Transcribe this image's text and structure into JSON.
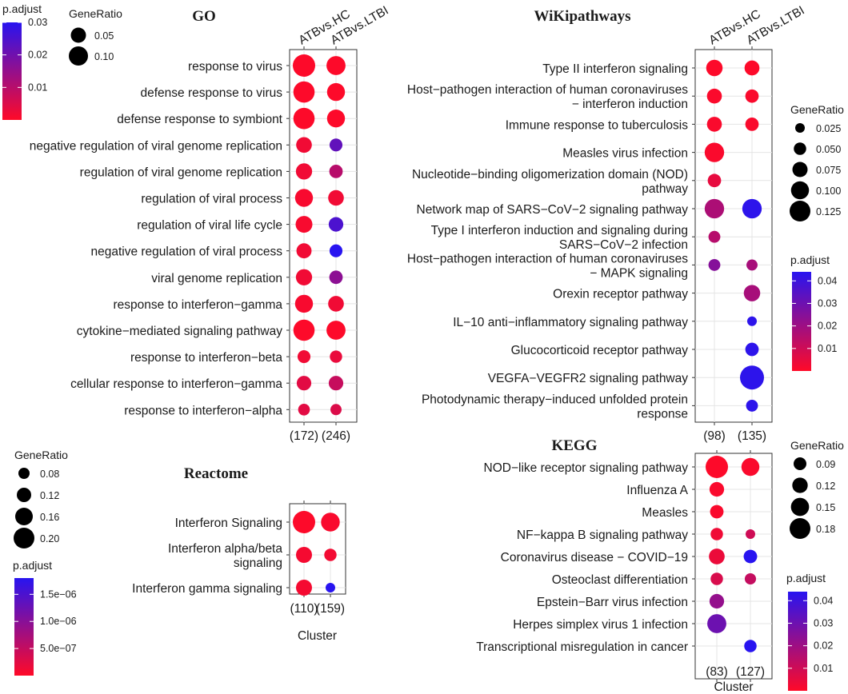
{
  "chart_data": [
    {
      "id": "go",
      "type": "scatter",
      "title": "GO",
      "xlabel": "",
      "columns": [
        "ATBvs.HC",
        "ATBvs.LTBI"
      ],
      "counts": [
        "(172)",
        "(246)"
      ],
      "terms": [
        "response to virus",
        "defense response to virus",
        "defense response to symbiont",
        "negative regulation of viral genome replication",
        "regulation of viral genome replication",
        "regulation of viral process",
        "regulation of viral life cycle",
        "negative regulation of viral process",
        "viral genome replication",
        "response to interferon−gamma",
        "cytokine−mediated signaling pathway",
        "response to interferon−beta",
        "cellular response to interferon−gamma",
        "response to interferon−alpha"
      ],
      "points": [
        {
          "term": 0,
          "col": 0,
          "ratio": 0.13,
          "padj": 0.0003
        },
        {
          "term": 0,
          "col": 1,
          "ratio": 0.1,
          "padj": 0.0003
        },
        {
          "term": 1,
          "col": 0,
          "ratio": 0.12,
          "padj": 0.0003
        },
        {
          "term": 1,
          "col": 1,
          "ratio": 0.09,
          "padj": 0.0003
        },
        {
          "term": 2,
          "col": 0,
          "ratio": 0.12,
          "padj": 0.0003
        },
        {
          "term": 2,
          "col": 1,
          "ratio": 0.09,
          "padj": 0.0003
        },
        {
          "term": 3,
          "col": 0,
          "ratio": 0.07,
          "padj": 0.002
        },
        {
          "term": 3,
          "col": 1,
          "ratio": 0.045,
          "padj": 0.022
        },
        {
          "term": 4,
          "col": 0,
          "ratio": 0.075,
          "padj": 0.002
        },
        {
          "term": 4,
          "col": 1,
          "ratio": 0.05,
          "padj": 0.01
        },
        {
          "term": 5,
          "col": 0,
          "ratio": 0.09,
          "padj": 0.001
        },
        {
          "term": 5,
          "col": 1,
          "ratio": 0.07,
          "padj": 0.002
        },
        {
          "term": 6,
          "col": 0,
          "ratio": 0.08,
          "padj": 0.001
        },
        {
          "term": 6,
          "col": 1,
          "ratio": 0.06,
          "padj": 0.025
        },
        {
          "term": 7,
          "col": 0,
          "ratio": 0.065,
          "padj": 0.002
        },
        {
          "term": 7,
          "col": 1,
          "ratio": 0.045,
          "padj": 0.03
        },
        {
          "term": 8,
          "col": 0,
          "ratio": 0.075,
          "padj": 0.002
        },
        {
          "term": 8,
          "col": 1,
          "ratio": 0.05,
          "padj": 0.016
        },
        {
          "term": 9,
          "col": 0,
          "ratio": 0.09,
          "padj": 0.001
        },
        {
          "term": 9,
          "col": 1,
          "ratio": 0.07,
          "padj": 0.002
        },
        {
          "term": 10,
          "col": 0,
          "ratio": 0.12,
          "padj": 0.0003
        },
        {
          "term": 10,
          "col": 1,
          "ratio": 0.1,
          "padj": 0.0003
        },
        {
          "term": 11,
          "col": 0,
          "ratio": 0.045,
          "padj": 0.002
        },
        {
          "term": 11,
          "col": 1,
          "ratio": 0.04,
          "padj": 0.003
        },
        {
          "term": 12,
          "col": 0,
          "ratio": 0.06,
          "padj": 0.004
        },
        {
          "term": 12,
          "col": 1,
          "ratio": 0.06,
          "padj": 0.008
        },
        {
          "term": 13,
          "col": 0,
          "ratio": 0.035,
          "padj": 0.004
        },
        {
          "term": 13,
          "col": 1,
          "ratio": 0.03,
          "padj": 0.005
        }
      ],
      "size_legend": {
        "title": "GeneRatio",
        "values": [
          0.05,
          0.1
        ],
        "labels": [
          "0.05",
          "0.10"
        ]
      },
      "color_legend": {
        "title": "p.adjust",
        "min": 0,
        "max": 0.03,
        "ticks": [
          0.01,
          0.02,
          0.03
        ],
        "labels": [
          "0.01",
          "0.02",
          "0.03"
        ]
      }
    },
    {
      "id": "reactome",
      "type": "scatter",
      "title": "Reactome",
      "xlabel": "Cluster",
      "columns": [],
      "counts": [
        "(110)",
        "(159)"
      ],
      "terms": [
        "Interferon Signaling",
        "Interferon alpha/beta|signaling",
        "Interferon gamma signaling"
      ],
      "points": [
        {
          "term": 0,
          "col": 0,
          "ratio": 0.2,
          "padj": 2e-08
        },
        {
          "term": 0,
          "col": 1,
          "ratio": 0.16,
          "padj": 5e-08
        },
        {
          "term": 1,
          "col": 0,
          "ratio": 0.13,
          "padj": 8e-08
        },
        {
          "term": 1,
          "col": 1,
          "ratio": 0.09,
          "padj": 1e-07
        },
        {
          "term": 2,
          "col": 0,
          "ratio": 0.13,
          "padj": 8e-08
        },
        {
          "term": 2,
          "col": 1,
          "ratio": 0.06,
          "padj": 1.8e-06
        }
      ],
      "size_legend": {
        "title": "GeneRatio",
        "values": [
          0.08,
          0.12,
          0.16,
          0.2
        ],
        "labels": [
          "0.08",
          "0.12",
          "0.16",
          "0.20"
        ]
      },
      "color_legend": {
        "title": "p.adjust",
        "min": 0,
        "max": 1.8e-06,
        "ticks": [
          5e-07,
          1e-06,
          1.5e-06
        ],
        "labels": [
          "5.0e−07",
          "1.0e−06",
          "1.5e−06"
        ]
      }
    },
    {
      "id": "wiki",
      "type": "scatter",
      "title": "WiKipathways",
      "xlabel": "",
      "columns": [
        "ATBvs.HC",
        "ATBvs.LTBI"
      ],
      "counts": [
        "(98)",
        "(135)"
      ],
      "terms": [
        "Type II interferon signaling",
        "Host−pathogen interaction of human coronaviruses|− interferon induction",
        "Immune response to tuberculosis",
        "Measles virus infection",
        "Nucleotide−binding oligomerization domain (NOD)|pathway",
        "Network map of SARS−CoV−2 signaling pathway",
        "Type I interferon induction and signaling during|SARS−CoV−2 infection",
        "Host−pathogen interaction of human coronaviruses|− MAPK signaling",
        "Orexin receptor pathway",
        "IL−10 anti−inflammatory signaling pathway",
        "Glucocorticoid receptor pathway",
        "VEGFA−VEGFR2 signaling pathway",
        "Photodynamic therapy−induced unfolded protein|response"
      ],
      "points": [
        {
          "term": 0,
          "col": 0,
          "ratio": 0.06,
          "padj": 0.0005
        },
        {
          "term": 0,
          "col": 1,
          "ratio": 0.05,
          "padj": 0.0005
        },
        {
          "term": 1,
          "col": 0,
          "ratio": 0.05,
          "padj": 0.0008
        },
        {
          "term": 1,
          "col": 1,
          "ratio": 0.04,
          "padj": 0.001
        },
        {
          "term": 2,
          "col": 0,
          "ratio": 0.05,
          "padj": 0.001
        },
        {
          "term": 2,
          "col": 1,
          "ratio": 0.04,
          "padj": 0.001
        },
        {
          "term": 3,
          "col": 0,
          "ratio": 0.08,
          "padj": 0.001
        },
        {
          "term": 4,
          "col": 0,
          "ratio": 0.04,
          "padj": 0.005
        },
        {
          "term": 5,
          "col": 0,
          "ratio": 0.08,
          "padj": 0.017
        },
        {
          "term": 5,
          "col": 1,
          "ratio": 0.08,
          "padj": 0.043
        },
        {
          "term": 6,
          "col": 0,
          "ratio": 0.03,
          "padj": 0.015
        },
        {
          "term": 7,
          "col": 0,
          "ratio": 0.03,
          "padj": 0.025
        },
        {
          "term": 7,
          "col": 1,
          "ratio": 0.025,
          "padj": 0.018
        },
        {
          "term": 8,
          "col": 1,
          "ratio": 0.06,
          "padj": 0.018
        },
        {
          "term": 9,
          "col": 1,
          "ratio": 0.015,
          "padj": 0.043
        },
        {
          "term": 10,
          "col": 1,
          "ratio": 0.04,
          "padj": 0.043
        },
        {
          "term": 11,
          "col": 1,
          "ratio": 0.11,
          "padj": 0.043
        },
        {
          "term": 12,
          "col": 1,
          "ratio": 0.03,
          "padj": 0.043
        }
      ],
      "size_legend": {
        "title": "GeneRatio",
        "values": [
          0.025,
          0.05,
          0.075,
          0.1,
          0.125
        ],
        "labels": [
          "0.025",
          "0.050",
          "0.075",
          "0.100",
          "0.125"
        ]
      },
      "color_legend": {
        "title": "p.adjust",
        "min": 0,
        "max": 0.044,
        "ticks": [
          0.01,
          0.02,
          0.03,
          0.04
        ],
        "labels": [
          "0.01",
          "0.02",
          "0.03",
          "0.04"
        ]
      }
    },
    {
      "id": "kegg",
      "type": "scatter",
      "title": "KEGG",
      "xlabel": "Cluster",
      "columns": [],
      "counts": [
        "(83)",
        "(127)"
      ],
      "terms": [
        "NOD−like receptor signaling pathway",
        "Influenza A",
        "Measles",
        "NF−kappa B signaling pathway",
        "Coronavirus disease − COVID−19",
        "Osteoclast differentiation",
        "Epstein−Barr virus infection",
        "Herpes simplex virus 1 infection",
        "Transcriptional misregulation in cancer"
      ],
      "points": [
        {
          "term": 0,
          "col": 0,
          "ratio": 0.19,
          "padj": 0.0005
        },
        {
          "term": 0,
          "col": 1,
          "ratio": 0.15,
          "padj": 0.001
        },
        {
          "term": 1,
          "col": 0,
          "ratio": 0.12,
          "padj": 0.001
        },
        {
          "term": 2,
          "col": 0,
          "ratio": 0.11,
          "padj": 0.001
        },
        {
          "term": 3,
          "col": 0,
          "ratio": 0.1,
          "padj": 0.003
        },
        {
          "term": 3,
          "col": 1,
          "ratio": 0.075,
          "padj": 0.01
        },
        {
          "term": 4,
          "col": 0,
          "ratio": 0.13,
          "padj": 0.004
        },
        {
          "term": 4,
          "col": 1,
          "ratio": 0.11,
          "padj": 0.044
        },
        {
          "term": 5,
          "col": 0,
          "ratio": 0.1,
          "padj": 0.008
        },
        {
          "term": 5,
          "col": 1,
          "ratio": 0.09,
          "padj": 0.012
        },
        {
          "term": 6,
          "col": 0,
          "ratio": 0.12,
          "padj": 0.022
        },
        {
          "term": 7,
          "col": 0,
          "ratio": 0.16,
          "padj": 0.03
        },
        {
          "term": 8,
          "col": 1,
          "ratio": 0.1,
          "padj": 0.044
        }
      ],
      "size_legend": {
        "title": "GeneRatio",
        "values": [
          0.09,
          0.12,
          0.15,
          0.18
        ],
        "labels": [
          "0.09",
          "0.12",
          "0.15",
          "0.18"
        ]
      },
      "color_legend": {
        "title": "p.adjust",
        "min": 0,
        "max": 0.044,
        "ticks": [
          0.01,
          0.02,
          0.03,
          0.04
        ],
        "labels": [
          "0.01",
          "0.02",
          "0.03",
          "0.04"
        ]
      }
    }
  ]
}
